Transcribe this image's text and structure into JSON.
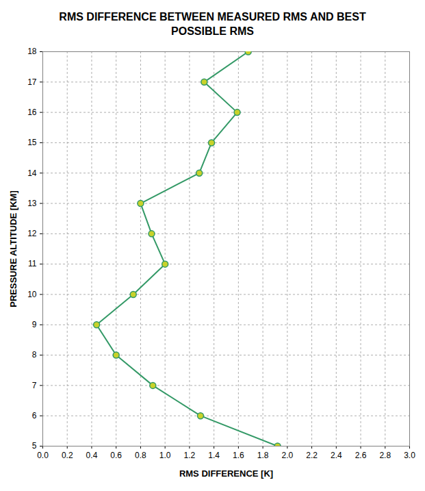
{
  "chart_data": {
    "type": "line",
    "title": "RMS DIFFERENCE BETWEEN MEASURED RMS AND BEST POSSIBLE RMS",
    "x_label": "RMS DIFFERENCE [K]",
    "y_label": "PRESSURE ALTITUDE [KM]",
    "orientation": "horizontal",
    "y": [
      5,
      6,
      7,
      8,
      9,
      10,
      11,
      12,
      13,
      14,
      15,
      16,
      17,
      18
    ],
    "values": [
      1.92,
      1.29,
      0.9,
      0.6,
      0.44,
      0.74,
      1.0,
      0.89,
      0.8,
      1.28,
      1.38,
      1.59,
      1.32,
      1.68
    ],
    "color": "#339966",
    "marker": "circle",
    "line_style": "solid",
    "grid": true,
    "xlim": [
      0,
      3
    ],
    "xticks": [
      {
        "value": 0,
        "label": "0.0"
      },
      0.2,
      0.4,
      0.6,
      0.8,
      {
        "value": 1,
        "label": "1.0"
      },
      1.2,
      1.4,
      1.6,
      1.8,
      {
        "value": 2,
        "label": "2.0"
      },
      2.2,
      2.4,
      2.6,
      2.8,
      {
        "value": 3,
        "label": "3.0"
      }
    ],
    "ylim": [
      5,
      18
    ],
    "yticks": [
      5,
      6,
      7,
      8,
      9,
      10,
      11,
      12,
      13,
      14,
      15,
      16,
      17,
      18
    ]
  }
}
